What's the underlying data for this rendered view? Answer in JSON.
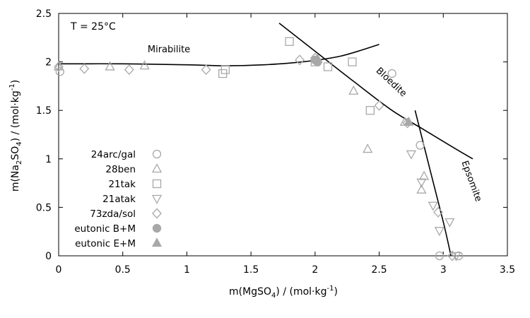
{
  "chart_data": {
    "type": "scatter",
    "xlabel_main": "m(MgSO",
    "xlabel_sub": "4",
    "xlabel_unit": ") / (mol·kg",
    "xlabel_sup": "-1",
    "xlabel_end": ")",
    "ylabel_main": "m(Na",
    "ylabel_sub1": "2",
    "ylabel_mid": "SO",
    "ylabel_sub2": "4",
    "ylabel_unit": ") / (mol·kg",
    "ylabel_sup": "-1",
    "ylabel_end": ")",
    "xlim": [
      0,
      3.5
    ],
    "ylim": [
      0,
      2.5
    ],
    "xticks": [
      {
        "v": 0,
        "label": "0"
      },
      {
        "v": 0.5,
        "label": "0.5"
      },
      {
        "v": 1,
        "label": "1"
      },
      {
        "v": 1.5,
        "label": "1.5"
      },
      {
        "v": 2,
        "label": "2"
      },
      {
        "v": 2.5,
        "label": "2.5"
      },
      {
        "v": 3,
        "label": "3"
      },
      {
        "v": 3.5,
        "label": "3.5"
      }
    ],
    "yticks": [
      {
        "v": 0,
        "label": "0"
      },
      {
        "v": 0.5,
        "label": "0.5"
      },
      {
        "v": 1,
        "label": "1"
      },
      {
        "v": 1.5,
        "label": "1.5"
      },
      {
        "v": 2,
        "label": "2"
      },
      {
        "v": 2.5,
        "label": "2.5"
      }
    ],
    "grid": false,
    "legend_position": "left",
    "annotation": "T = 25°C",
    "curves": [
      {
        "name": "Mirabilite",
        "points": [
          [
            0,
            1.98
          ],
          [
            0.5,
            1.98
          ],
          [
            1,
            1.97
          ],
          [
            1.3,
            1.96
          ],
          [
            1.6,
            1.97
          ],
          [
            1.9,
            2.0
          ],
          [
            2.2,
            2.06
          ],
          [
            2.5,
            2.18
          ]
        ],
        "label": {
          "x": 0.86,
          "y": 2.1,
          "angle": 0
        }
      },
      {
        "name": "Bloedite",
        "points": [
          [
            1.72,
            2.4
          ],
          [
            2.0,
            2.11
          ],
          [
            2.3,
            1.8
          ],
          [
            2.6,
            1.5
          ],
          [
            2.85,
            1.3
          ],
          [
            3.1,
            1.1
          ],
          [
            3.23,
            1.0
          ]
        ],
        "label": {
          "x": 2.58,
          "y": 1.77,
          "angle": 43
        }
      },
      {
        "name": "Epsomite",
        "points": [
          [
            2.78,
            1.5
          ],
          [
            2.9,
            0.87
          ],
          [
            3.0,
            0.35
          ],
          [
            3.06,
            0.0
          ]
        ],
        "label": {
          "x": 3.2,
          "y": 0.76,
          "angle": 70
        }
      }
    ],
    "series": [
      {
        "name": "24arc/gal",
        "marker": "circle",
        "filled": false,
        "x": [
          0.01,
          2.6,
          2.82,
          2.97,
          3.12
        ],
        "y": [
          1.9,
          1.88,
          1.14,
          0.0,
          0.0
        ]
      },
      {
        "name": "28ben",
        "marker": "triangle-up",
        "filled": false,
        "x": [
          0.0,
          0.4,
          0.67,
          2.02,
          2.3,
          2.41,
          2.7,
          2.83,
          2.85
        ],
        "y": [
          1.95,
          1.95,
          1.96,
          2.03,
          1.7,
          1.1,
          1.38,
          0.68,
          0.82
        ]
      },
      {
        "name": "21tak",
        "marker": "square",
        "filled": false,
        "x": [
          1.28,
          1.3,
          1.8,
          2.0,
          2.1,
          2.29,
          2.43
        ],
        "y": [
          1.88,
          1.92,
          2.21,
          2.0,
          1.95,
          2.0,
          1.5
        ]
      },
      {
        "name": "21atak",
        "marker": "triangle-down",
        "filled": false,
        "x": [
          2.75,
          2.83,
          2.92,
          2.97,
          3.05,
          3.1
        ],
        "y": [
          1.05,
          0.76,
          0.52,
          0.26,
          0.35,
          0.0
        ]
      },
      {
        "name": "73zda/sol",
        "marker": "diamond",
        "filled": false,
        "x": [
          0.0,
          0.2,
          0.55,
          1.15,
          1.88,
          2.0,
          2.5,
          2.72,
          2.96,
          3.07
        ],
        "y": [
          1.95,
          1.93,
          1.92,
          1.92,
          2.02,
          2.04,
          1.55,
          1.37,
          0.45,
          0.0
        ]
      },
      {
        "name": "eutonic B+M",
        "marker": "circle",
        "filled": true,
        "x": [
          2.0,
          2.02
        ],
        "y": [
          2.02,
          2.0
        ]
      },
      {
        "name": "eutonic E+M",
        "marker": "triangle-up",
        "filled": true,
        "x": [
          2.73
        ],
        "y": [
          1.38
        ]
      }
    ]
  }
}
